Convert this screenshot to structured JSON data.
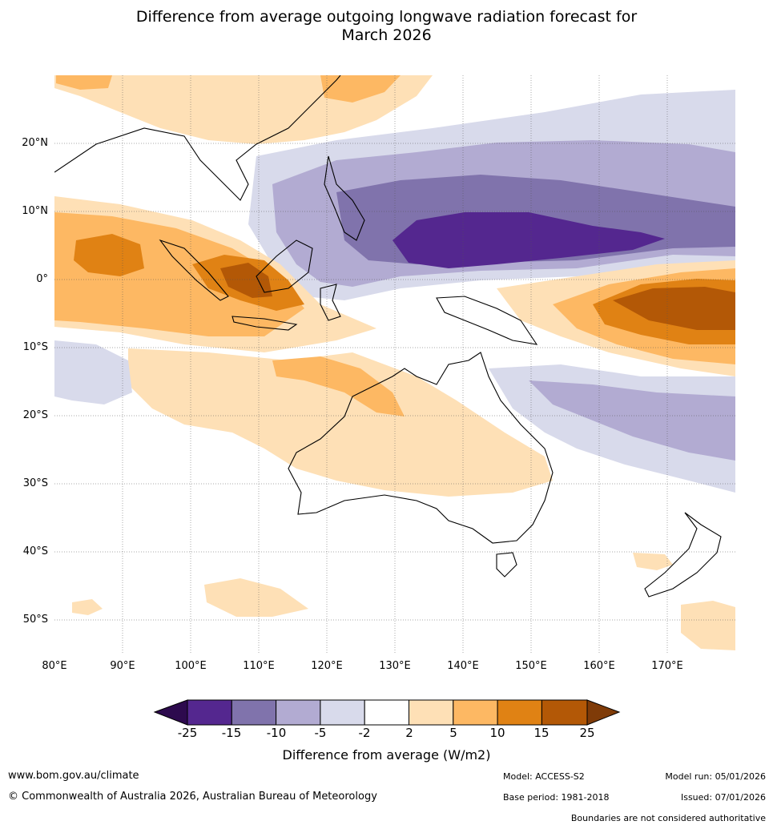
{
  "title_line1": "Difference from average outgoing longwave radiation forecast for",
  "title_line2": "March 2026",
  "latitude_labels": [
    "20°N",
    "10°N",
    "0°",
    "10°S",
    "20°S",
    "30°S",
    "40°S",
    "50°S"
  ],
  "longitude_labels": [
    "80°E",
    "90°E",
    "100°E",
    "110°E",
    "120°E",
    "130°E",
    "140°E",
    "150°E",
    "160°E",
    "170°E"
  ],
  "colorbar": {
    "labels": [
      "-25",
      "-15",
      "-10",
      "-5",
      "-2",
      "2",
      "5",
      "10",
      "15",
      "25"
    ],
    "colors": [
      "#2d0a4e",
      "#54278f",
      "#8073ac",
      "#b2abd2",
      "#d8daeb",
      "#ffffff",
      "#fee0b6",
      "#fdb863",
      "#e08214",
      "#b35806",
      "#7f3b08"
    ],
    "title": "Difference from average (W/m2)"
  },
  "footer": {
    "website": "www.bom.gov.au/climate",
    "copyright": "© Commonwealth of Australia 2026, Australian Bureau of Meteorology",
    "model": "Model: ACCESS-S2",
    "base_period": "Base period: 1981-2018",
    "model_run": "Model run: 05/01/2026",
    "issued": "Issued: 07/01/2026",
    "disclaimer": "Boundaries are not considered authoritative"
  }
}
